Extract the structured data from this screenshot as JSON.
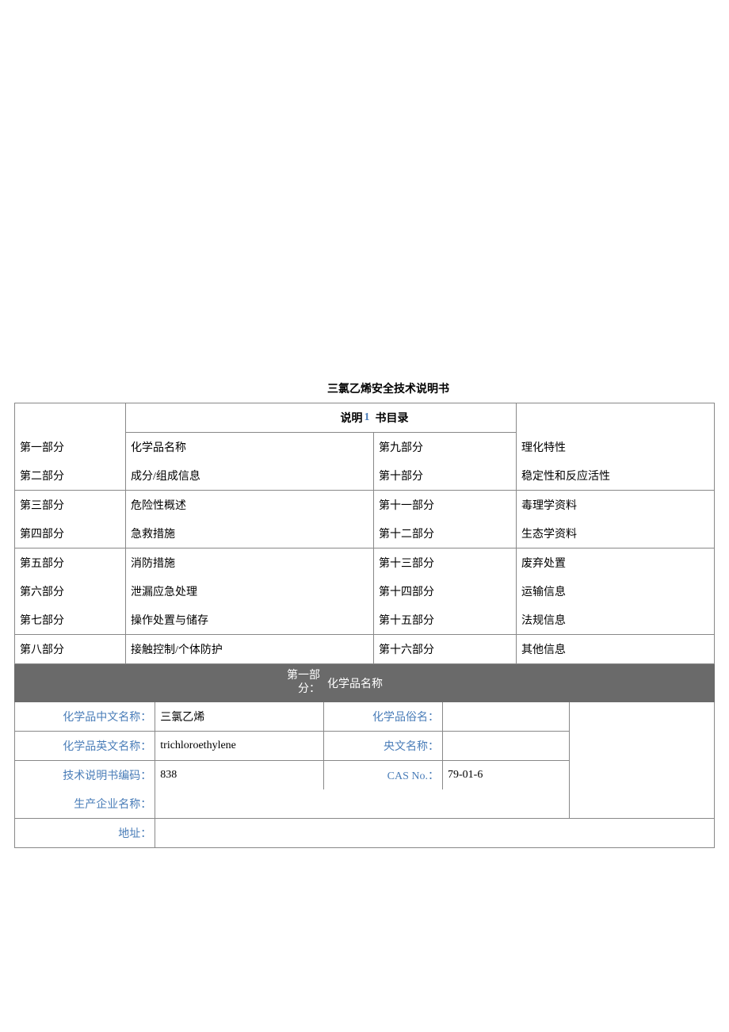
{
  "title": "三氯乙烯安全技术说明书",
  "toc_header": {
    "left": "说明",
    "num": "1",
    "right": "书目录"
  },
  "toc": [
    {
      "c1": "第一部分",
      "c2": "化学品名称",
      "c3": "第九部分",
      "c4": "理化特性"
    },
    {
      "c1": "第二部分",
      "c2": "成分/组成信息",
      "c3": "第十部分",
      "c4": "稳定性和反应活性"
    },
    {
      "c1": "第三部分",
      "c2": "危险性概述",
      "c3": "第十一部分",
      "c4": "毒理学资料"
    },
    {
      "c1": "第四部分",
      "c2": "急救措施",
      "c3": "第十二部分",
      "c4": "生态学资料"
    },
    {
      "c1": "第五部分",
      "c2": "消防措施",
      "c3": "第十三部分",
      "c4": "废弃处置"
    },
    {
      "c1": "第六部分",
      "c2": "泄漏应急处理",
      "c3": "第十四部分",
      "c4": "运输信息"
    },
    {
      "c1": "第七部分",
      "c2": "操作处置与储存",
      "c3": "第十五部分",
      "c4": "法规信息"
    },
    {
      "c1": "第八部分",
      "c2": "接触控制/个体防护",
      "c3": "第十六部分",
      "c4": "其他信息"
    }
  ],
  "section1": {
    "header_left": "第一部\n分：",
    "header_right": "化学品名称",
    "rows": [
      {
        "l1": "化学品中文名称：",
        "v1": "三氯乙烯",
        "l2": "化学品俗名：",
        "v2": ""
      },
      {
        "l1": "化学品英文名称：",
        "v1": "trichloroethylene",
        "l2": "央文名称：",
        "v2": ""
      },
      {
        "l1": "技术说明书编码：",
        "v1": "838",
        "l2": "CAS No.：",
        "v2": "79-01-6"
      }
    ],
    "mfr_label": "生产企业名称：",
    "mfr_value": "",
    "addr_label": "地址：",
    "addr_value": ""
  },
  "colors": {
    "border": "#888888",
    "label": "#4a7db8",
    "section_bg": "#6a6a6a",
    "section_fg": "#ffffff",
    "text": "#000000"
  }
}
